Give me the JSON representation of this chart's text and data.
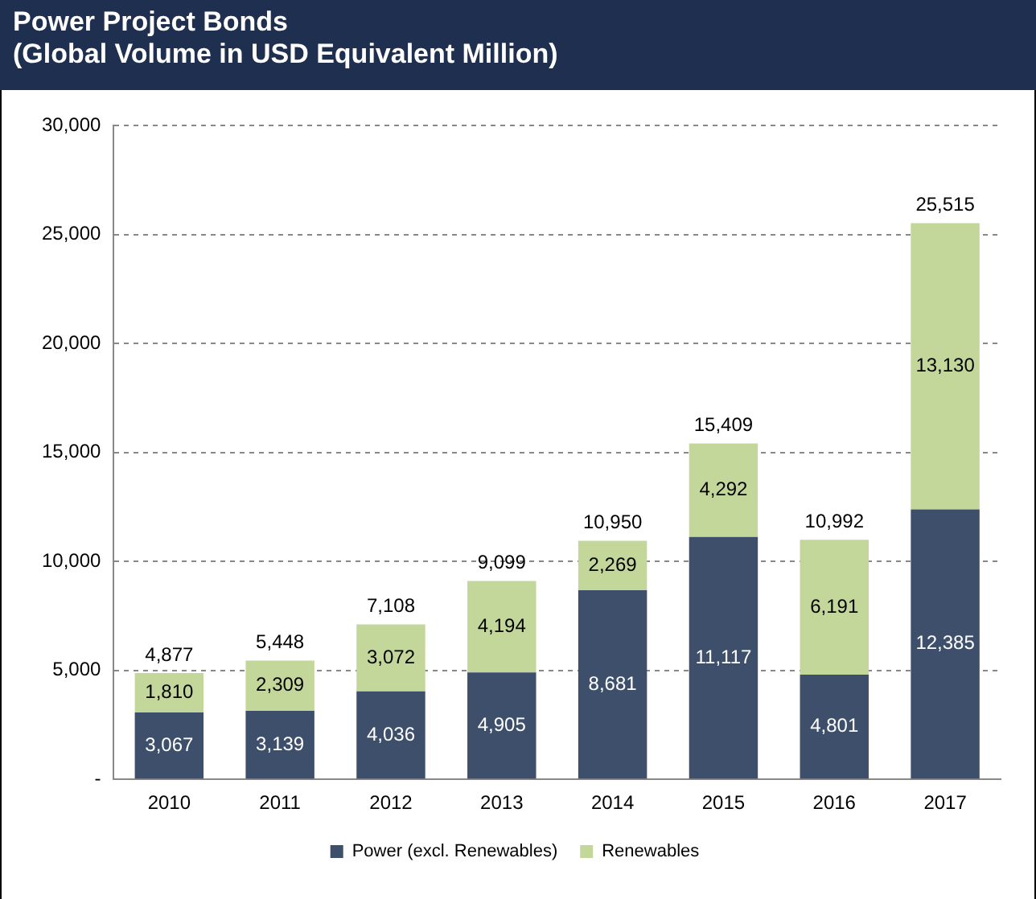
{
  "chart_data": {
    "type": "bar",
    "title": "Power Project Bonds",
    "subtitle": "(Global Volume in USD Equivalent Million)",
    "categories": [
      "2010",
      "2011",
      "2012",
      "2013",
      "2014",
      "2015",
      "2016",
      "2017"
    ],
    "stacked": true,
    "series": [
      {
        "name": "Power (excl. Renewables)",
        "color": "#3d4f6b",
        "values": [
          3067,
          3139,
          4036,
          4905,
          8681,
          11117,
          4801,
          12385
        ],
        "value_labels": [
          "3,067",
          "3,139",
          "4,036",
          "4,905",
          "8,681",
          "11,117",
          "4,801",
          "12,385"
        ]
      },
      {
        "name": "Renewables",
        "color": "#c4d79b",
        "values": [
          1810,
          2309,
          3072,
          4194,
          2269,
          4292,
          6191,
          13130
        ],
        "value_labels": [
          "1,810",
          "2,309",
          "3,072",
          "4,194",
          "2,269",
          "4,292",
          "6,191",
          "13,130"
        ]
      }
    ],
    "totals": [
      "4,877",
      "5,448",
      "7,108",
      "9,099",
      "10,950",
      "15,409",
      "10,992",
      "25,515"
    ],
    "ylim": [
      0,
      30000
    ],
    "yticks": [
      {
        "value": 0,
        "label": "-"
      },
      {
        "value": 5000,
        "label": "5,000"
      },
      {
        "value": 10000,
        "label": "10,000"
      },
      {
        "value": 15000,
        "label": "15,000"
      },
      {
        "value": 20000,
        "label": "20,000"
      },
      {
        "value": 25000,
        "label": "25,000"
      },
      {
        "value": 30000,
        "label": "30,000"
      }
    ],
    "grid": "y",
    "legend": "bottom"
  }
}
